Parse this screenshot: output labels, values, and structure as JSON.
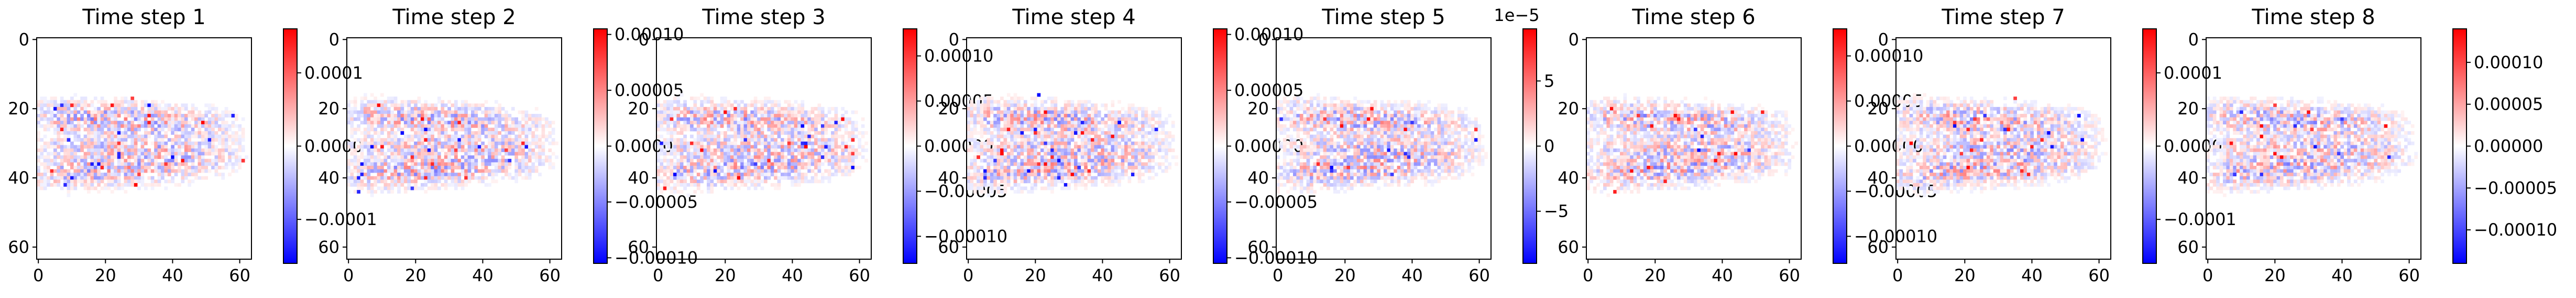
{
  "chart_data": [
    {
      "type": "heatmap",
      "title": "Time step 1",
      "x_ticks": [
        "0",
        "20",
        "40",
        "60"
      ],
      "y_ticks": [
        "0",
        "20",
        "40",
        "60"
      ],
      "xlim": [
        0,
        64
      ],
      "ylim": [
        64,
        0
      ],
      "colormap": "bwr",
      "colorbar": {
        "ticks": [
          0.0001,
          0,
          -0.0001
        ],
        "tick_labels": [
          "0.0001",
          "0.0000",
          "−0.0001"
        ],
        "range": [
          -0.00016,
          0.00016
        ]
      }
    },
    {
      "type": "heatmap",
      "title": "Time step 2",
      "x_ticks": [
        "0",
        "20",
        "40",
        "60"
      ],
      "y_ticks": [
        "0",
        "20",
        "40",
        "60"
      ],
      "xlim": [
        0,
        64
      ],
      "ylim": [
        64,
        0
      ],
      "colormap": "bwr",
      "colorbar": {
        "ticks": [
          0.0001,
          5e-05,
          0,
          -5e-05,
          -0.0001
        ],
        "tick_labels": [
          "0.00010",
          "0.00005",
          "0.00000",
          "−0.00005",
          "−0.00010"
        ],
        "range": [
          -0.000105,
          0.000105
        ]
      }
    },
    {
      "type": "heatmap",
      "title": "Time step 3",
      "x_ticks": [
        "0",
        "20",
        "40",
        "60"
      ],
      "y_ticks": [
        "0",
        "20",
        "40",
        "60"
      ],
      "xlim": [
        0,
        64
      ],
      "ylim": [
        64,
        0
      ],
      "colormap": "bwr",
      "colorbar": {
        "ticks": [
          0.0001,
          5e-05,
          0,
          -5e-05,
          -0.0001
        ],
        "tick_labels": [
          "0.00010",
          "0.00005",
          "0.00000",
          "−0.00005",
          "−0.00010"
        ],
        "range": [
          -0.00013,
          0.00013
        ]
      }
    },
    {
      "type": "heatmap",
      "title": "Time step 4",
      "x_ticks": [
        "0",
        "20",
        "40",
        "60"
      ],
      "y_ticks": [
        "0",
        "20",
        "40",
        "60"
      ],
      "xlim": [
        0,
        64
      ],
      "ylim": [
        64,
        0
      ],
      "colormap": "bwr",
      "colorbar": {
        "ticks": [
          0.0001,
          5e-05,
          0,
          -5e-05,
          -0.0001
        ],
        "tick_labels": [
          "0.00010",
          "0.00005",
          "0.00000",
          "−0.00005",
          "−0.00010"
        ],
        "range": [
          -0.000105,
          0.000105
        ]
      }
    },
    {
      "type": "heatmap",
      "title": "Time step 5",
      "x_ticks": [
        "0",
        "20",
        "40",
        "60"
      ],
      "y_ticks": [
        "0",
        "20",
        "40",
        "60"
      ],
      "xlim": [
        0,
        64
      ],
      "ylim": [
        64,
        0
      ],
      "colormap": "bwr",
      "colorbar": {
        "ticks": [
          5,
          0,
          -5
        ],
        "tick_labels": [
          "5",
          "0",
          "−5"
        ],
        "offset_label": "1e−5",
        "range": [
          -9,
          9
        ]
      }
    },
    {
      "type": "heatmap",
      "title": "Time step 6",
      "x_ticks": [
        "0",
        "20",
        "40",
        "60"
      ],
      "y_ticks": [
        "0",
        "20",
        "40",
        "60"
      ],
      "xlim": [
        0,
        64
      ],
      "ylim": [
        64,
        0
      ],
      "colormap": "bwr",
      "colorbar": {
        "ticks": [
          0.0001,
          5e-05,
          0,
          -5e-05,
          -0.0001
        ],
        "tick_labels": [
          "0.00010",
          "0.00005",
          "0.00000",
          "−0.00005",
          "−0.00010"
        ],
        "range": [
          -0.00013,
          0.00013
        ]
      }
    },
    {
      "type": "heatmap",
      "title": "Time step 7",
      "x_ticks": [
        "0",
        "20",
        "40",
        "60"
      ],
      "y_ticks": [
        "0",
        "20",
        "40",
        "60"
      ],
      "xlim": [
        0,
        64
      ],
      "ylim": [
        64,
        0
      ],
      "colormap": "bwr",
      "colorbar": {
        "ticks": [
          0.0001,
          0,
          -0.0001
        ],
        "tick_labels": [
          "0.0001",
          "0.0000",
          "−0.0001"
        ],
        "range": [
          -0.00016,
          0.00016
        ]
      }
    },
    {
      "type": "heatmap",
      "title": "Time step 8",
      "x_ticks": [
        "0",
        "20",
        "40",
        "60"
      ],
      "y_ticks": [
        "0",
        "20",
        "40",
        "60"
      ],
      "xlim": [
        0,
        64
      ],
      "ylim": [
        64,
        0
      ],
      "colormap": "bwr",
      "colorbar": {
        "ticks": [
          0.0001,
          5e-05,
          0,
          -5e-05,
          -0.0001
        ],
        "tick_labels": [
          "0.00010",
          "0.00005",
          "0.00000",
          "−0.00005",
          "−0.00010"
        ],
        "range": [
          -0.00014,
          0.00014
        ]
      }
    }
  ],
  "colors": {
    "positive": "#ff0000",
    "neutral": "#ffffff",
    "negative": "#0000ff"
  }
}
